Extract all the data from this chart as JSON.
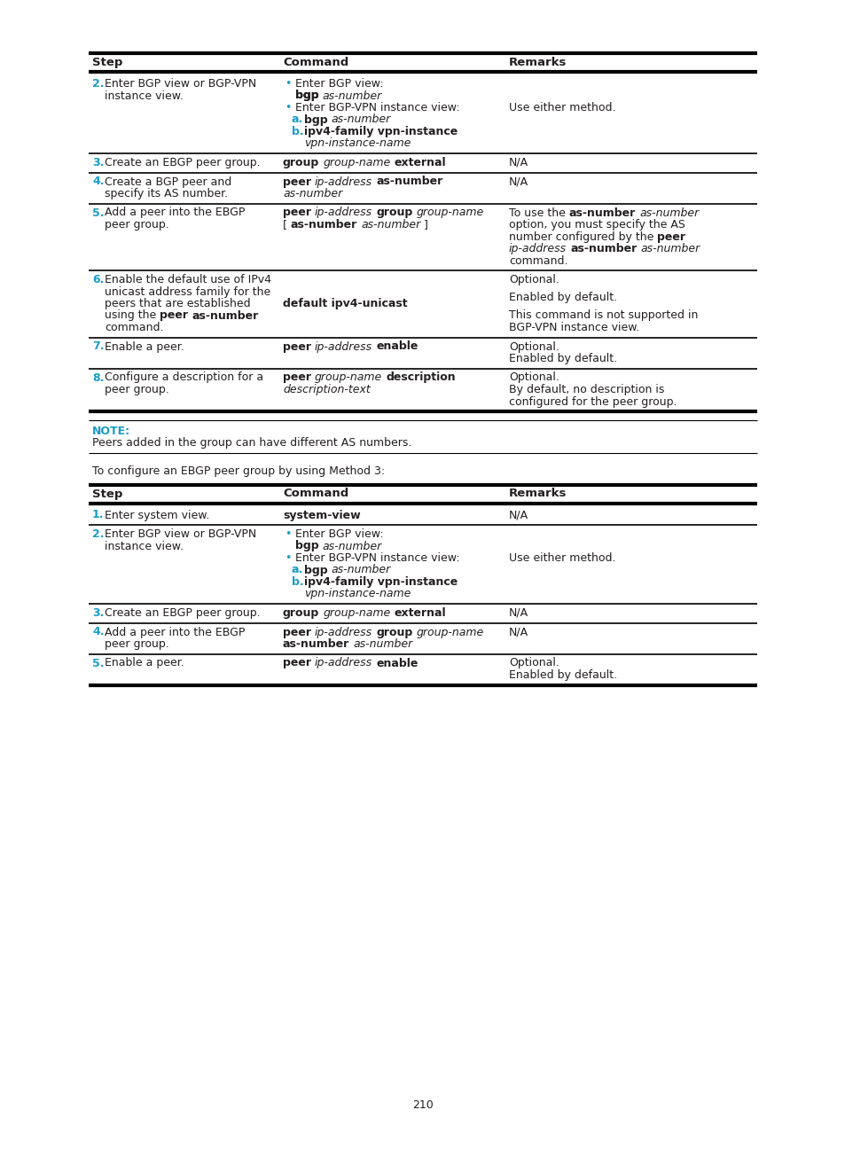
{
  "page_number": "210",
  "cyan_color": "#1a9cc9",
  "black_color": "#231f20",
  "bg_color": "#FFFFFF",
  "note_label": "NOTE:",
  "note_text": "Peers added in the group can have different AS numbers.",
  "intro_text2": "To configure an EBGP peer group by using Method 3:"
}
